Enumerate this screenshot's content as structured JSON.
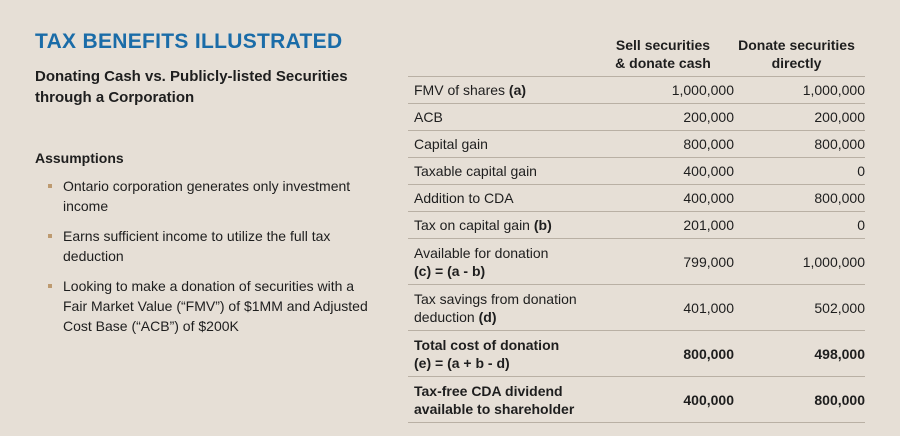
{
  "heading": {
    "title": "TAX BENEFITS ILLUSTRATED",
    "subtitle": "Donating Cash vs. Publicly-listed Securities through a Corporation"
  },
  "assumptions": {
    "heading": "Assumptions",
    "items": [
      "Ontario corporation generates only investment income",
      "Earns sufficient income to utilize the full tax deduction",
      "Looking to make a donation of securities with a Fair Market Value (“FMV”) of $1MM and Adjusted Cost Base (“ACB”) of $200K"
    ]
  },
  "table": {
    "columns": {
      "col1_line1": "Sell securities",
      "col1_line2": "& donate cash",
      "col2_line1": "Donate securities",
      "col2_line2": "directly"
    },
    "rows": [
      {
        "label": "FMV of shares",
        "label_bold": "(a)",
        "v1": "1,000,000",
        "v2": "1,000,000"
      },
      {
        "label": "ACB",
        "v1": "200,000",
        "v2": "200,000"
      },
      {
        "label": "Capital gain",
        "v1": "800,000",
        "v2": "800,000"
      },
      {
        "label": "Taxable capital gain",
        "v1": "400,000",
        "v2": "0"
      },
      {
        "label": "Addition to CDA",
        "v1": "400,000",
        "v2": "800,000"
      },
      {
        "label": "Tax on capital gain",
        "label_bold": "(b)",
        "v1": "201,000",
        "v2": "0"
      },
      {
        "label_line1": "Available for donation",
        "label_line2_bold": "(c) = (a - b)",
        "v1": "799,000",
        "v2": "1,000,000"
      },
      {
        "label_line1": "Tax savings from donation",
        "label_line2": "deduction",
        "label_line2_bold": "(d)",
        "v1": "401,000",
        "v2": "502,000"
      },
      {
        "label_line1": "Total cost of donation",
        "label_line2": "(e) = (a + b - d)",
        "v1": "800,000",
        "v2": "498,000"
      },
      {
        "label_line1": "Tax-free CDA dividend",
        "label_line2": "available to shareholder",
        "v1": "400,000",
        "v2": "800,000"
      }
    ]
  }
}
